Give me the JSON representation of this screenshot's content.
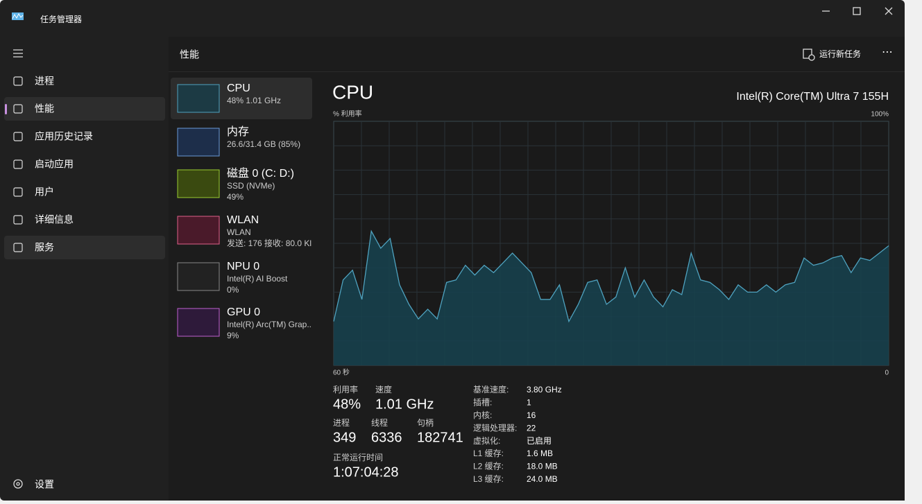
{
  "title_bar": {
    "title": "任务管理器"
  },
  "nav": {
    "items": [
      "进程",
      "性能",
      "应用历史记录",
      "启动应用",
      "用户",
      "详细信息",
      "服务"
    ],
    "settings": "设置"
  },
  "header": {
    "title": "性能",
    "run_task": "运行新任务"
  },
  "devices": [
    {
      "name": "CPU",
      "lines": [
        "48% 1.01 GHz"
      ]
    },
    {
      "name": "内存",
      "lines": [
        "26.6/31.4 GB (85%)"
      ]
    },
    {
      "name": "磁盘 0 (C: D:)",
      "lines": [
        "SSD (NVMe)",
        "49%"
      ]
    },
    {
      "name": "WLAN",
      "lines": [
        "WLAN",
        "发送: 176 接收: 80.0 Kl"
      ]
    },
    {
      "name": "NPU 0",
      "lines": [
        "Intel(R) AI Boost",
        "0%"
      ]
    },
    {
      "name": "GPU 0",
      "lines": [
        "Intel(R) Arc(TM) Grap..",
        "9%"
      ]
    }
  ],
  "detail": {
    "title": "CPU",
    "model": "Intel(R) Core(TM) Ultra 7 155H",
    "y_label": "% 利用率",
    "y_max_label": "100%",
    "x_left_label": "60 秒",
    "x_right_label": "0",
    "graph": {
      "ylim": [
        0,
        100
      ],
      "values": [
        18,
        35,
        39,
        27,
        55,
        48,
        52,
        33,
        25,
        19,
        23,
        19,
        34,
        35,
        41,
        37,
        41,
        38,
        42,
        46,
        42,
        38,
        27,
        27,
        33,
        18,
        25,
        34,
        35,
        25,
        28,
        40,
        28,
        35,
        28,
        24,
        31,
        29,
        46,
        35,
        34,
        31,
        27,
        33,
        30,
        30,
        33,
        30,
        33,
        34,
        44,
        41,
        42,
        44,
        45,
        38,
        44,
        43,
        46,
        49
      ]
    },
    "stats": [
      {
        "label": "利用率",
        "value": "48%"
      },
      {
        "label": "速度",
        "value": "1.01 GHz"
      },
      {
        "label": "进程",
        "value": "349"
      },
      {
        "label": "线程",
        "value": "6336"
      },
      {
        "label": "句柄",
        "value": "182741"
      },
      {
        "label": "正常运行时间",
        "value": "1:07:04:28"
      }
    ],
    "specs": [
      {
        "label": "基准速度:",
        "value": "3.80 GHz"
      },
      {
        "label": "插槽:",
        "value": "1"
      },
      {
        "label": "内核:",
        "value": "16"
      },
      {
        "label": "逻辑处理器:",
        "value": "22"
      },
      {
        "label": "虚拟化:",
        "value": "已启用"
      },
      {
        "label": "L1 缓存:",
        "value": "1.6 MB"
      },
      {
        "label": "L2 缓存:",
        "value": "18.0 MB"
      },
      {
        "label": "L3 缓存:",
        "value": "24.0 MB"
      }
    ]
  }
}
